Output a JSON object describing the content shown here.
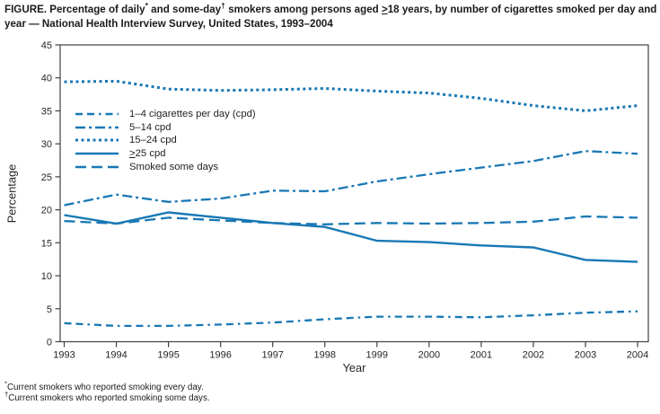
{
  "title": {
    "parts": [
      {
        "t": "FIGURE. Percentage of daily"
      },
      {
        "t": "*",
        "sup": true
      },
      {
        "t": " and some-day"
      },
      {
        "t": "†",
        "sup": true
      },
      {
        "t": " smokers among persons aged "
      },
      {
        "t": ">",
        "u": true
      },
      {
        "t": "18 years, by number of cigarettes smoked per day and year — National Health Interview Survey, United States, 1993–2004"
      }
    ]
  },
  "chart_data": {
    "type": "line",
    "x": [
      1993,
      1994,
      1995,
      1996,
      1997,
      1998,
      1999,
      2000,
      2001,
      2002,
      2003,
      2004
    ],
    "series": [
      {
        "id": "cpd-1-4",
        "label": "1–4 cigarettes per day (cpd)",
        "style": "dash-dash-dot",
        "values": [
          2.8,
          2.4,
          2.4,
          2.6,
          2.9,
          3.4,
          3.8,
          3.8,
          3.7,
          4.0,
          4.4,
          4.6
        ]
      },
      {
        "id": "cpd-5-14",
        "label": "5–14 cpd",
        "style": "dash-dot",
        "values": [
          20.7,
          22.3,
          21.2,
          21.7,
          22.9,
          22.8,
          24.3,
          25.4,
          26.4,
          27.4,
          28.9,
          28.5
        ]
      },
      {
        "id": "cpd-15-24",
        "label": "15–24 cpd",
        "style": "dotted",
        "values": [
          39.4,
          39.5,
          38.3,
          38.1,
          38.2,
          38.4,
          38.0,
          37.7,
          36.9,
          35.8,
          35.0,
          35.8
        ]
      },
      {
        "id": "cpd-25-plus",
        "label": "25 cpd",
        "label_prefix_underline": ">",
        "style": "solid",
        "values": [
          19.2,
          17.9,
          19.6,
          18.8,
          18.0,
          17.4,
          15.3,
          15.1,
          14.6,
          14.3,
          12.4,
          12.1
        ]
      },
      {
        "id": "smoked-some-days",
        "label": "Smoked some days",
        "style": "long-dash",
        "values": [
          18.3,
          17.9,
          18.8,
          18.4,
          18.0,
          17.8,
          18.0,
          17.9,
          18.0,
          18.2,
          19.0,
          18.8
        ]
      }
    ],
    "xlabel": "Year",
    "ylabel": "Percentage",
    "ylim": [
      0,
      45
    ],
    "ytick_step": 5,
    "x_tick_labels": [
      "1993",
      "1994",
      "1995",
      "1996",
      "1997",
      "1998",
      "1999",
      "2000",
      "2001",
      "2002",
      "2003",
      "2004"
    ],
    "y_tick_labels": [
      "0",
      "5",
      "10",
      "15",
      "20",
      "25",
      "30",
      "35",
      "40",
      "45"
    ],
    "grid": false,
    "legend_position": "upper-left-inside",
    "theme": {
      "line_color": "#1878b4",
      "axis_color": "#404040",
      "text_color": "#262626",
      "background": "#ffffff"
    }
  },
  "footnotes": [
    {
      "marker": "*",
      "text": "Current smokers who reported smoking every day."
    },
    {
      "marker": "†",
      "text": "Current smokers who reported smoking some days."
    }
  ]
}
